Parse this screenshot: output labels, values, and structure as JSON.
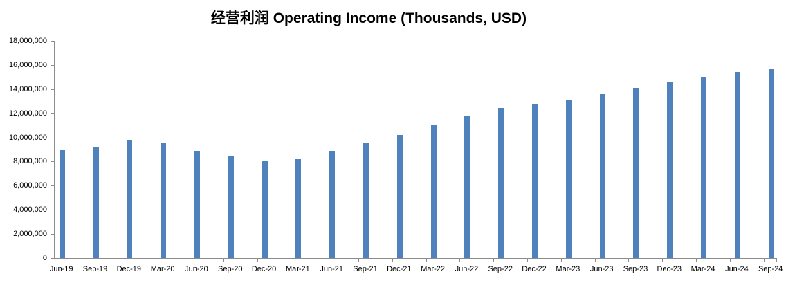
{
  "chart_data": {
    "type": "bar",
    "title": "经营利润 Operating Income (Thousands, USD)",
    "series_name": "Operating Income",
    "categories": [
      "Jun-19",
      "Sep-19",
      "Dec-19",
      "Mar-20",
      "Jun-20",
      "Sep-20",
      "Dec-20",
      "Mar-21",
      "Jun-21",
      "Sep-21",
      "Dec-21",
      "Mar-22",
      "Jun-22",
      "Sep-22",
      "Dec-22",
      "Mar-23",
      "Jun-23",
      "Sep-23",
      "Dec-23",
      "Mar-24",
      "Jun-24",
      "Sep-24"
    ],
    "values": [
      8950000,
      9250000,
      9800000,
      9600000,
      8900000,
      8400000,
      8050000,
      8200000,
      8900000,
      9550000,
      10200000,
      11000000,
      11800000,
      12450000,
      12800000,
      13150000,
      13600000,
      14100000,
      14600000,
      15000000,
      15400000,
      15700000
    ],
    "ylim": [
      0,
      18000000
    ],
    "ytick_interval": 2000000,
    "ytick_labels": [
      "0",
      "2,000,000",
      "4,000,000",
      "6,000,000",
      "8,000,000",
      "10,000,000",
      "12,000,000",
      "14,000,000",
      "16,000,000",
      "18,000,000"
    ],
    "xlabel": "",
    "ylabel": "",
    "grid": false,
    "legend_position": "none",
    "bar_color": "#4F81BD",
    "axis_color": "#8C8C8C",
    "text_color": "#000000",
    "background_color": "#FFFFFF"
  }
}
